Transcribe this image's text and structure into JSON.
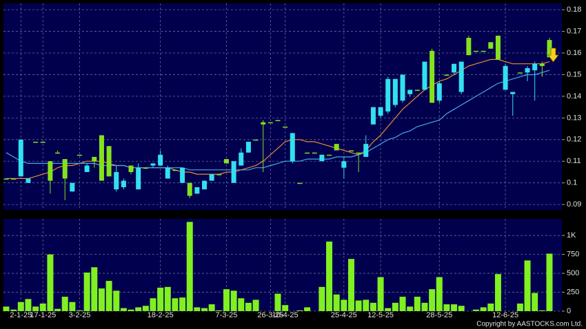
{
  "chart_data": [
    {
      "type": "candlestick",
      "categories": [
        null,
        null,
        "2-1-25",
        null,
        null,
        "17-1-25",
        null,
        null,
        null,
        null,
        "3-2-25",
        null,
        null,
        null,
        null,
        null,
        null,
        null,
        null,
        null,
        null,
        "18-2-25",
        null,
        null,
        null,
        null,
        null,
        null,
        null,
        null,
        "7-3-25",
        null,
        null,
        null,
        null,
        null,
        "26-3-25",
        null,
        "10-4-25",
        null,
        null,
        null,
        null,
        null,
        null,
        null,
        "25-4-25",
        null,
        null,
        null,
        null,
        "12-5-25",
        null,
        null,
        null,
        null,
        null,
        null,
        null,
        "28-5-25",
        null,
        null,
        null,
        null,
        null,
        null,
        null,
        null,
        "12-6-25",
        null,
        null,
        null,
        null,
        null,
        null
      ],
      "open": [
        0.102,
        0.102,
        0.12,
        0.102,
        0.119,
        0.119,
        0.101,
        0.114,
        0.102,
        0.1,
        0.113,
        0.108,
        0.11,
        0.101,
        0.103,
        0.105,
        0.101,
        0.105,
        0.107,
        0.107,
        0.109,
        0.113,
        0.107,
        0.106,
        0.107,
        0.094,
        0.098,
        0.101,
        0.104,
        0.104,
        0.109,
        0.11,
        0.114,
        0.119,
        0.12,
        0.127,
        0.128,
        0.129,
        0.126,
        0.123,
        0.1,
        0.114,
        0.114,
        0.113,
        0.113,
        0.115,
        0.11,
        0.115,
        0.114,
        0.118,
        0.135,
        0.135,
        0.148,
        0.148,
        0.15,
        0.143,
        0.143,
        0.156,
        0.137,
        0.146,
        0.15,
        0.155,
        0.156,
        0.159,
        0.161,
        0.161,
        0.162,
        0.157,
        0.154,
        0.142,
        0.151,
        0.153,
        0.155,
        0.154,
        0.158
      ],
      "high": [
        0.102,
        0.102,
        0.12,
        0.102,
        0.119,
        0.119,
        0.11,
        0.115,
        0.111,
        0.1,
        0.113,
        0.109,
        0.112,
        0.122,
        0.117,
        0.108,
        0.102,
        0.108,
        0.109,
        0.107,
        0.109,
        0.115,
        0.108,
        0.106,
        0.107,
        0.1,
        0.098,
        0.101,
        0.104,
        0.104,
        0.111,
        0.11,
        0.116,
        0.119,
        0.12,
        0.129,
        0.128,
        0.129,
        0.126,
        0.123,
        0.1,
        0.114,
        0.114,
        0.113,
        0.113,
        0.118,
        0.112,
        0.115,
        0.114,
        0.122,
        0.135,
        0.135,
        0.149,
        0.148,
        0.15,
        0.143,
        0.143,
        0.156,
        0.162,
        0.147,
        0.15,
        0.155,
        0.156,
        0.168,
        0.161,
        0.161,
        0.165,
        0.168,
        0.155,
        0.142,
        0.151,
        0.154,
        0.156,
        0.156,
        0.167
      ],
      "low": [
        0.102,
        0.102,
        0.103,
        0.1,
        0.119,
        0.119,
        0.095,
        0.114,
        0.092,
        0.096,
        0.113,
        0.105,
        0.107,
        0.101,
        0.103,
        0.096,
        0.097,
        0.104,
        0.097,
        0.107,
        0.107,
        0.108,
        0.102,
        0.106,
        0.1,
        0.093,
        0.095,
        0.097,
        0.101,
        0.104,
        0.109,
        0.1,
        0.108,
        0.114,
        0.12,
        0.105,
        0.128,
        0.129,
        0.126,
        0.109,
        0.1,
        0.114,
        0.114,
        0.11,
        0.113,
        0.115,
        0.102,
        0.115,
        0.105,
        0.112,
        0.127,
        0.13,
        0.132,
        0.135,
        0.137,
        0.14,
        0.143,
        0.143,
        0.137,
        0.137,
        0.15,
        0.15,
        0.141,
        0.159,
        0.161,
        0.161,
        0.162,
        0.157,
        0.143,
        0.131,
        0.151,
        0.147,
        0.138,
        0.149,
        0.158
      ],
      "close": [
        0.102,
        0.102,
        0.103,
        0.1,
        0.119,
        0.119,
        0.11,
        0.114,
        0.111,
        0.096,
        0.113,
        0.105,
        0.112,
        0.122,
        0.117,
        0.097,
        0.098,
        0.108,
        0.097,
        0.107,
        0.108,
        0.108,
        0.102,
        0.106,
        0.1,
        0.1,
        0.095,
        0.097,
        0.101,
        0.104,
        0.111,
        0.1,
        0.108,
        0.114,
        0.12,
        0.128,
        0.128,
        0.129,
        0.126,
        0.11,
        0.1,
        0.114,
        0.114,
        0.11,
        0.113,
        0.118,
        0.107,
        0.115,
        0.114,
        0.112,
        0.127,
        0.131,
        0.133,
        0.136,
        0.138,
        0.141,
        0.143,
        0.143,
        0.161,
        0.138,
        0.15,
        0.151,
        0.142,
        0.167,
        0.161,
        0.161,
        0.165,
        0.168,
        0.143,
        0.141,
        0.151,
        0.151,
        0.152,
        0.155,
        0.166
      ],
      "up_color": "#86e01e",
      "down_color": "#33e0f0",
      "series": [
        {
          "color": "#f08a30",
          "values": [
            0.102,
            0.102,
            0.102,
            0.102,
            0.103,
            0.104,
            0.105,
            0.107,
            0.108,
            0.108,
            0.109,
            0.11,
            0.11,
            0.11,
            0.109,
            0.108,
            0.108,
            0.107,
            0.107,
            0.107,
            0.107,
            0.107,
            0.107,
            0.106,
            0.105,
            0.105,
            0.104,
            0.104,
            0.104,
            0.104,
            0.105,
            0.105,
            0.106,
            0.107,
            0.108,
            0.11,
            0.113,
            0.116,
            0.119,
            0.12,
            0.12,
            0.119,
            0.119,
            0.118,
            0.117,
            0.116,
            0.115,
            0.114,
            0.113,
            0.115,
            0.119,
            0.122,
            0.126,
            0.13,
            0.134,
            0.137,
            0.14,
            0.143,
            0.145,
            0.147,
            0.148,
            0.15,
            0.152,
            0.154,
            0.155,
            0.156,
            0.157,
            0.157,
            0.156,
            0.155,
            0.155,
            0.155,
            0.155,
            0.155,
            0.156
          ]
        },
        {
          "color": "#4aa8e8",
          "values": [
            0.114,
            0.112,
            0.11,
            0.109,
            0.109,
            0.109,
            0.109,
            0.109,
            0.109,
            0.109,
            0.109,
            0.109,
            0.109,
            0.108,
            0.108,
            0.108,
            0.108,
            0.107,
            0.107,
            0.107,
            0.107,
            0.107,
            0.107,
            0.107,
            0.107,
            0.106,
            0.106,
            0.106,
            0.106,
            0.106,
            0.106,
            0.106,
            0.106,
            0.106,
            0.107,
            0.107,
            0.108,
            0.109,
            0.11,
            0.11,
            0.11,
            0.111,
            0.111,
            0.111,
            0.111,
            0.112,
            0.112,
            0.112,
            0.113,
            0.114,
            0.116,
            0.118,
            0.12,
            0.121,
            0.123,
            0.124,
            0.126,
            0.127,
            0.128,
            0.129,
            0.132,
            0.134,
            0.136,
            0.138,
            0.14,
            0.142,
            0.144,
            0.146,
            0.147,
            0.148,
            0.149,
            0.15,
            0.15,
            0.151,
            0.152
          ]
        }
      ],
      "ylim": [
        0.0875,
        0.1829
      ],
      "yticks": [
        0.09,
        0.1,
        0.11,
        0.12,
        0.13,
        0.14,
        0.15,
        0.16,
        0.17,
        0.18
      ],
      "grid": true
    },
    {
      "type": "bar",
      "values": [
        60,
        20,
        120,
        160,
        60,
        100,
        750,
        30,
        190,
        120,
        10,
        510,
        580,
        300,
        400,
        270,
        40,
        20,
        50,
        70,
        170,
        310,
        320,
        170,
        180,
        1180,
        50,
        40,
        90,
        10,
        290,
        270,
        170,
        110,
        150,
        0,
        0,
        230,
        80,
        0,
        10,
        50,
        0,
        320,
        920,
        220,
        150,
        690,
        140,
        150,
        110,
        450,
        40,
        110,
        190,
        60,
        190,
        110,
        290,
        450,
        90,
        90,
        70,
        0,
        20,
        50,
        100,
        490,
        0,
        0,
        100,
        670,
        240,
        10,
        760
      ],
      "color": "#80f020",
      "ylim": [
        0,
        1220
      ],
      "yticks": [
        0,
        250,
        500,
        750,
        {
          "value": 1000,
          "label": "1K"
        }
      ],
      "grid": true
    }
  ],
  "footer": "Copyright by AASTOCKS.com Ltd."
}
